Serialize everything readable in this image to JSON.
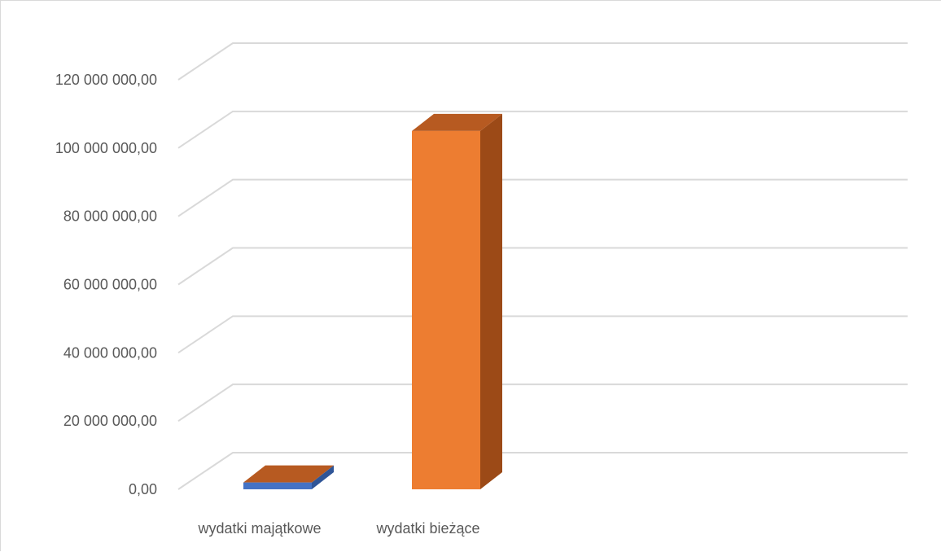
{
  "chart_data": {
    "type": "bar",
    "three_d": true,
    "title": "",
    "xlabel": "",
    "ylabel": "",
    "categories": [
      "wydatki majątkowe",
      "wydatki bieżące"
    ],
    "values": [
      2000000,
      105000000
    ],
    "ylim": [
      0,
      120000000
    ],
    "ytick_values": [
      0,
      20000000,
      40000000,
      60000000,
      80000000,
      100000000,
      120000000
    ],
    "ytick_labels": [
      "0,00",
      "20 000 000,00",
      "40 000 000,00",
      "60 000 000,00",
      "80 000 000,00",
      "100 000 000,00",
      "120 000 000,00"
    ],
    "grid": true,
    "legend": "none",
    "colors": {
      "bar_fronts": [
        "#4472c4",
        "#ed7d31"
      ],
      "bar_sides": [
        "#2f5597",
        "#9c4a17"
      ],
      "bar_tops": [
        "#b75a21",
        "#b75a21"
      ],
      "grid": "#d9d9d9",
      "text": "#595959"
    }
  }
}
